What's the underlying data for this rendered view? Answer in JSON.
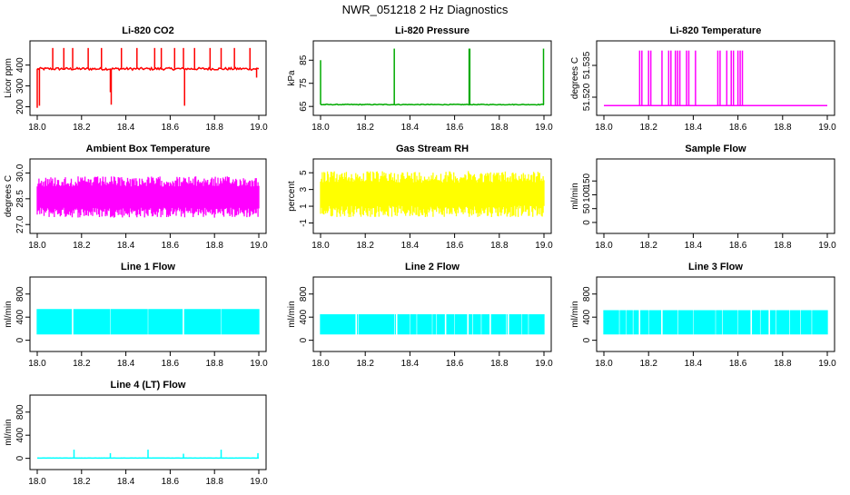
{
  "figure_title": "NWR_051218  2 Hz Diagnostics",
  "chart_data": [
    {
      "id": "co2",
      "type": "line",
      "title": "Li-820 CO2",
      "xlabel": "",
      "ylabel": "Licor ppm",
      "color": "#ff0000",
      "xlim": [
        18.0,
        19.0
      ],
      "xticks": [
        "18.0",
        "18.2",
        "18.4",
        "18.6",
        "18.8",
        "19.0"
      ],
      "ylim": [
        185,
        490
      ],
      "yticks": [
        200,
        300,
        400
      ],
      "base": 382,
      "noise": 6,
      "fill_band": null,
      "spikes": [
        [
          18.0,
          195
        ],
        [
          18.01,
          205
        ],
        [
          18.07,
          482
        ],
        [
          18.12,
          482
        ],
        [
          18.16,
          482
        ],
        [
          18.23,
          482
        ],
        [
          18.29,
          482
        ],
        [
          18.33,
          270
        ],
        [
          18.334,
          210
        ],
        [
          18.38,
          482
        ],
        [
          18.45,
          482
        ],
        [
          18.53,
          482
        ],
        [
          18.56,
          482
        ],
        [
          18.62,
          482
        ],
        [
          18.66,
          482
        ],
        [
          18.665,
          205
        ],
        [
          18.71,
          482
        ],
        [
          18.78,
          482
        ],
        [
          18.83,
          482
        ],
        [
          18.89,
          482
        ],
        [
          18.96,
          482
        ],
        [
          18.99,
          340
        ]
      ]
    },
    {
      "id": "pressure",
      "type": "line",
      "title": "Li-820 Pressure",
      "xlabel": "",
      "ylabel": "kPa",
      "color": "#00aa00",
      "xlim": [
        18.0,
        19.0
      ],
      "xticks": [
        "18.0",
        "18.2",
        "18.4",
        "18.6",
        "18.8",
        "19.0"
      ],
      "ylim": [
        63.5,
        91
      ],
      "yticks": [
        65,
        75,
        85
      ],
      "base": 65.8,
      "noise": 0.15,
      "fill_band": null,
      "spikes": [
        [
          18.0,
          85
        ],
        [
          18.33,
          90
        ],
        [
          18.665,
          90
        ],
        [
          18.668,
          90
        ],
        [
          18.998,
          90
        ]
      ]
    },
    {
      "id": "temperature",
      "type": "line",
      "title": "Li-820 Temperature",
      "xlabel": "",
      "ylabel": "degrees C",
      "color": "#ff00ff",
      "xlim": [
        18.0,
        19.0
      ],
      "xticks": [
        "18.0",
        "18.2",
        "18.4",
        "18.6",
        "18.8",
        "19.0"
      ],
      "ylim": [
        51.514,
        51.544
      ],
      "yticks": [
        51.52,
        51.535
      ],
      "ytick_labels": [
        "51.520",
        "51.535"
      ],
      "base": 51.516,
      "noise": 0,
      "fill_band": null,
      "spikes": [
        [
          18.16,
          51.542
        ],
        [
          18.17,
          51.542
        ],
        [
          18.2,
          51.542
        ],
        [
          18.21,
          51.542
        ],
        [
          18.26,
          51.542
        ],
        [
          18.29,
          51.542
        ],
        [
          18.3,
          51.542
        ],
        [
          18.32,
          51.542
        ],
        [
          18.33,
          51.542
        ],
        [
          18.34,
          51.542
        ],
        [
          18.37,
          51.542
        ],
        [
          18.38,
          51.542
        ],
        [
          18.41,
          51.542
        ],
        [
          18.51,
          51.542
        ],
        [
          18.52,
          51.542
        ],
        [
          18.55,
          51.542
        ],
        [
          18.57,
          51.542
        ],
        [
          18.58,
          51.542
        ],
        [
          18.6,
          51.542
        ],
        [
          18.61,
          51.542
        ],
        [
          18.62,
          51.542
        ]
      ]
    },
    {
      "id": "ambient",
      "type": "line",
      "title": "Ambient Box Temperature",
      "xlabel": "",
      "ylabel": "degrees C",
      "color": "#ff00ff",
      "xlim": [
        18.0,
        19.0
      ],
      "xticks": [
        "18.0",
        "18.2",
        "18.4",
        "18.6",
        "18.8",
        "19.0"
      ],
      "ylim": [
        26.8,
        30.5
      ],
      "yticks": [
        27.0,
        28.5,
        30.0
      ],
      "ytick_labels": [
        "27.0",
        "28.5",
        "30.0"
      ],
      "base": null,
      "noise": 0,
      "fill_band": [
        27.4,
        29.8
      ],
      "spikes": []
    },
    {
      "id": "rh",
      "type": "line",
      "title": "Gas Stream RH",
      "xlabel": "",
      "ylabel": "percent",
      "color": "#ffff00",
      "xlim": [
        18.0,
        19.0
      ],
      "xticks": [
        "18.0",
        "18.2",
        "18.4",
        "18.6",
        "18.8",
        "19.0"
      ],
      "ylim": [
        -1.6,
        6
      ],
      "yticks": [
        -1,
        1,
        3,
        5
      ],
      "base": null,
      "noise": 0,
      "fill_band": [
        -0.3,
        5.2
      ],
      "spikes": []
    },
    {
      "id": "sample",
      "type": "line",
      "title": "Sample Flow",
      "xlabel": "",
      "ylabel": "ml/min",
      "color": "#00ffff",
      "xlim": [
        18.0,
        19.0
      ],
      "xticks": [
        "18.0",
        "18.2",
        "18.4",
        "18.6",
        "18.8",
        "19.0"
      ],
      "ylim": [
        -20,
        210
      ],
      "yticks": [
        0,
        50,
        100,
        150
      ],
      "base": null,
      "noise": 0,
      "fill_band": null,
      "spikes": []
    },
    {
      "id": "line1",
      "type": "line",
      "title": "Line 1 Flow",
      "xlabel": "",
      "ylabel": "ml/min",
      "color": "#00ffff",
      "xlim": [
        18.0,
        19.0
      ],
      "xticks": [
        "18.0",
        "18.2",
        "18.4",
        "18.6",
        "18.8",
        "19.0"
      ],
      "ylim": [
        -100,
        1000
      ],
      "yticks": [
        0,
        400,
        800
      ],
      "base": null,
      "noise": 0,
      "fill_band": [
        100,
        540
      ],
      "gaps": [
        18.16,
        18.33,
        18.5,
        18.66,
        18.83
      ],
      "spikes": []
    },
    {
      "id": "line2",
      "type": "line",
      "title": "Line 2 Flow",
      "xlabel": "",
      "ylabel": "ml/min",
      "color": "#00ffff",
      "xlim": [
        18.0,
        19.0
      ],
      "xticks": [
        "18.0",
        "18.2",
        "18.4",
        "18.6",
        "18.8",
        "19.0"
      ],
      "ylim": [
        -100,
        1000
      ],
      "yticks": [
        0,
        400,
        800
      ],
      "base": null,
      "noise": 0,
      "fill_band": [
        100,
        450
      ],
      "gaps": [
        18.16,
        18.17,
        18.33,
        18.34,
        18.4,
        18.43,
        18.5,
        18.52,
        18.56,
        18.6,
        18.66,
        18.68,
        18.72,
        18.76,
        18.83,
        18.84,
        18.9,
        18.93
      ],
      "spikes": []
    },
    {
      "id": "line3",
      "type": "line",
      "title": "Line 3 Flow",
      "xlabel": "",
      "ylabel": "ml/min",
      "color": "#00ffff",
      "xlim": [
        18.0,
        19.0
      ],
      "xticks": [
        "18.0",
        "18.2",
        "18.4",
        "18.6",
        "18.8",
        "19.0"
      ],
      "ylim": [
        -100,
        1000
      ],
      "yticks": [
        0,
        400,
        800
      ],
      "base": null,
      "noise": 0,
      "fill_band": [
        100,
        520
      ],
      "gaps": [
        18.07,
        18.1,
        18.13,
        18.16,
        18.2,
        18.26,
        18.33,
        18.4,
        18.5,
        18.53,
        18.6,
        18.66,
        18.7,
        18.74,
        18.77,
        18.83,
        18.88,
        18.93
      ],
      "spikes": []
    },
    {
      "id": "line4",
      "type": "line",
      "title": "Line 4 (LT) Flow",
      "xlabel": "",
      "ylabel": "ml/min",
      "color": "#00ffff",
      "xlim": [
        18.0,
        19.0
      ],
      "xticks": [
        "18.0",
        "18.2",
        "18.4",
        "18.6",
        "18.8",
        "19.0"
      ],
      "ylim": [
        -100,
        1000
      ],
      "yticks": [
        0,
        400,
        800
      ],
      "base": 5,
      "noise": 2,
      "fill_band": null,
      "spikes": [
        [
          18.166,
          150
        ],
        [
          18.33,
          90
        ],
        [
          18.5,
          150
        ],
        [
          18.66,
          80
        ],
        [
          18.83,
          150
        ],
        [
          18.996,
          90
        ]
      ]
    }
  ]
}
